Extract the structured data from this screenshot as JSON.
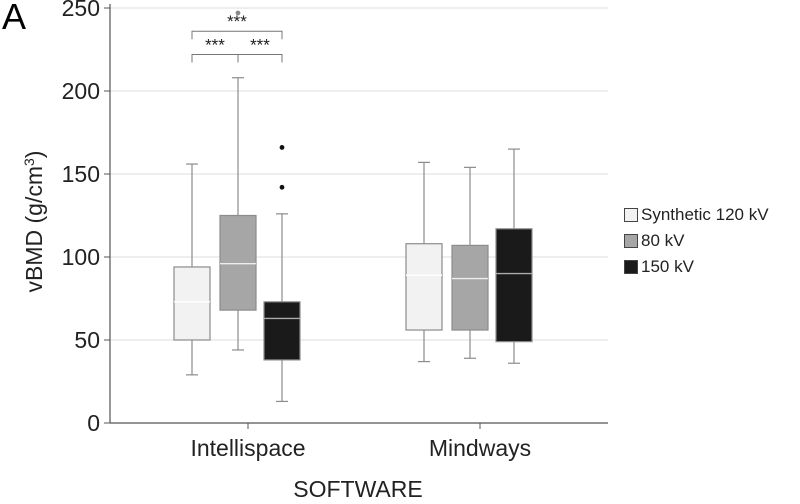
{
  "panel_label": "A",
  "chart_data": {
    "type": "box",
    "xlabel": "SOFTWARE",
    "ylabel": "vBMD (g/cm³)",
    "ylabel_base": "vBMD (g/cm",
    "ylabel_sup": "3",
    "ylabel_close": ")",
    "ylim": [
      0,
      250
    ],
    "yticks": [
      0,
      50,
      100,
      150,
      200,
      250
    ],
    "grid": "horizontal",
    "legend_position": "right",
    "categories": [
      "Intellispace",
      "Mindways"
    ],
    "series": [
      {
        "name": "Synthetic 120 kV",
        "color": "#f2f2f2",
        "median_color": "#ffffff",
        "boxes": [
          {
            "min": 29,
            "q1": 50,
            "median": 73,
            "q3": 94,
            "max": 156,
            "outliers": []
          },
          {
            "min": 37,
            "q1": 56,
            "median": 89,
            "q3": 108,
            "max": 157,
            "outliers": []
          }
        ]
      },
      {
        "name": "80 kV",
        "color": "#a6a6a6",
        "median_color": "#ededed",
        "boxes": [
          {
            "min": 44,
            "q1": 68,
            "median": 96,
            "q3": 125,
            "max": 208,
            "outliers": [
              247
            ]
          },
          {
            "min": 39,
            "q1": 56,
            "median": 87,
            "q3": 107,
            "max": 154,
            "outliers": []
          }
        ]
      },
      {
        "name": "150 kV",
        "color": "#1a1a1a",
        "median_color": "#aaaaaa",
        "boxes": [
          {
            "min": 13,
            "q1": 38,
            "median": 63,
            "q3": 73,
            "max": 126,
            "outliers": [
              142,
              166
            ]
          },
          {
            "min": 36,
            "q1": 49,
            "median": 90,
            "q3": 117,
            "max": 165,
            "outliers": []
          }
        ]
      }
    ],
    "annotations": [
      {
        "text": "***",
        "category": 0,
        "from": 0,
        "to": 2,
        "level": 236
      },
      {
        "text": "***",
        "category": 0,
        "from": 0,
        "to": 1,
        "level": 222
      },
      {
        "text": "***",
        "category": 0,
        "from": 1,
        "to": 2,
        "level": 222
      }
    ]
  }
}
